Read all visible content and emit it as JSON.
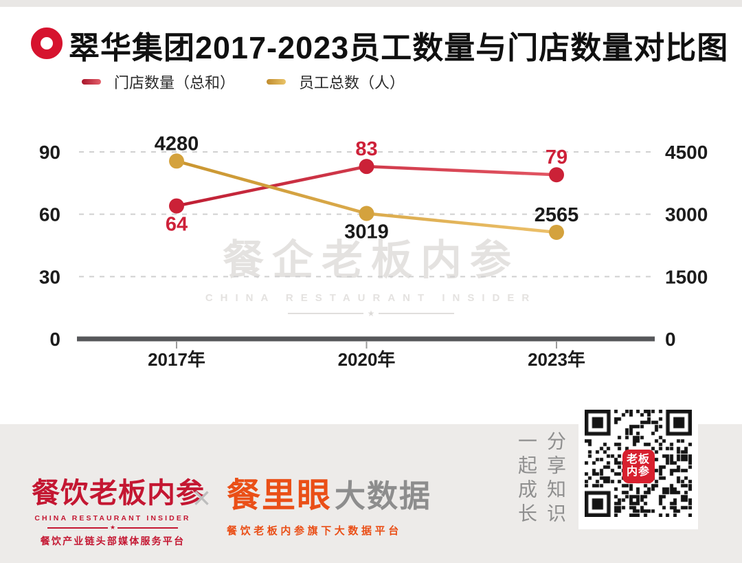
{
  "header": {
    "title": "翠华集团2017-2023员工数量与门店数量对比图"
  },
  "chart_data": {
    "type": "line",
    "title": "翠华集团2017-2023员工数量与门店数量对比图",
    "categories": [
      "2017年",
      "2020年",
      "2023年"
    ],
    "series": [
      {
        "name": "门店数量（总和）",
        "axis": "left",
        "values": [
          64,
          83,
          79
        ],
        "color": "#bf1e33",
        "color_end": "#e25663",
        "point_color": "#cb2137",
        "label_color": "#ce2139",
        "label_pos": [
          "below",
          "above",
          "above"
        ]
      },
      {
        "name": "员工总数（人）",
        "axis": "right",
        "values": [
          4280,
          3019,
          2565
        ],
        "color": "#c9952f",
        "color_end": "#ecc06a",
        "point_color": "#d4a23d",
        "label_color": "#1a1a1a",
        "label_pos": [
          "above",
          "below",
          "above"
        ]
      }
    ],
    "left_axis": {
      "min": 0,
      "max": 90,
      "ticks": [
        0,
        30,
        60,
        90
      ]
    },
    "right_axis": {
      "min": 0,
      "max": 4500,
      "ticks": [
        0,
        1500,
        3000,
        4500
      ]
    },
    "grid": "horizontal-dashed",
    "legend_position": "top-left"
  },
  "watermark": {
    "cn": "餐企老板内参",
    "en": "CHINA RESTAURANT INSIDER",
    "star": "★"
  },
  "footer": {
    "brand1": {
      "name": "餐饮老板内参",
      "en": "CHINA RESTAURANT INSIDER",
      "star": "★",
      "tagline": "餐饮产业链头部媒体服务平台"
    },
    "separator": "×",
    "brand2": {
      "name": "餐里眼",
      "suffix": "大数据",
      "tagline": "餐饮老板内参旗下大数据平台"
    },
    "slogan_right_column": "分享知识",
    "slogan_left_column": "一起成长",
    "qr_label_line1": "老板",
    "qr_label_line2": "内参"
  },
  "colors": {
    "accent_red": "#d6132e",
    "brand1_red": "#c41732",
    "brand2_orange": "#ea4f17",
    "footer_bg": "#edebe9",
    "grid_gray": "#d0d0d0",
    "axis_gray": "#56575a"
  }
}
